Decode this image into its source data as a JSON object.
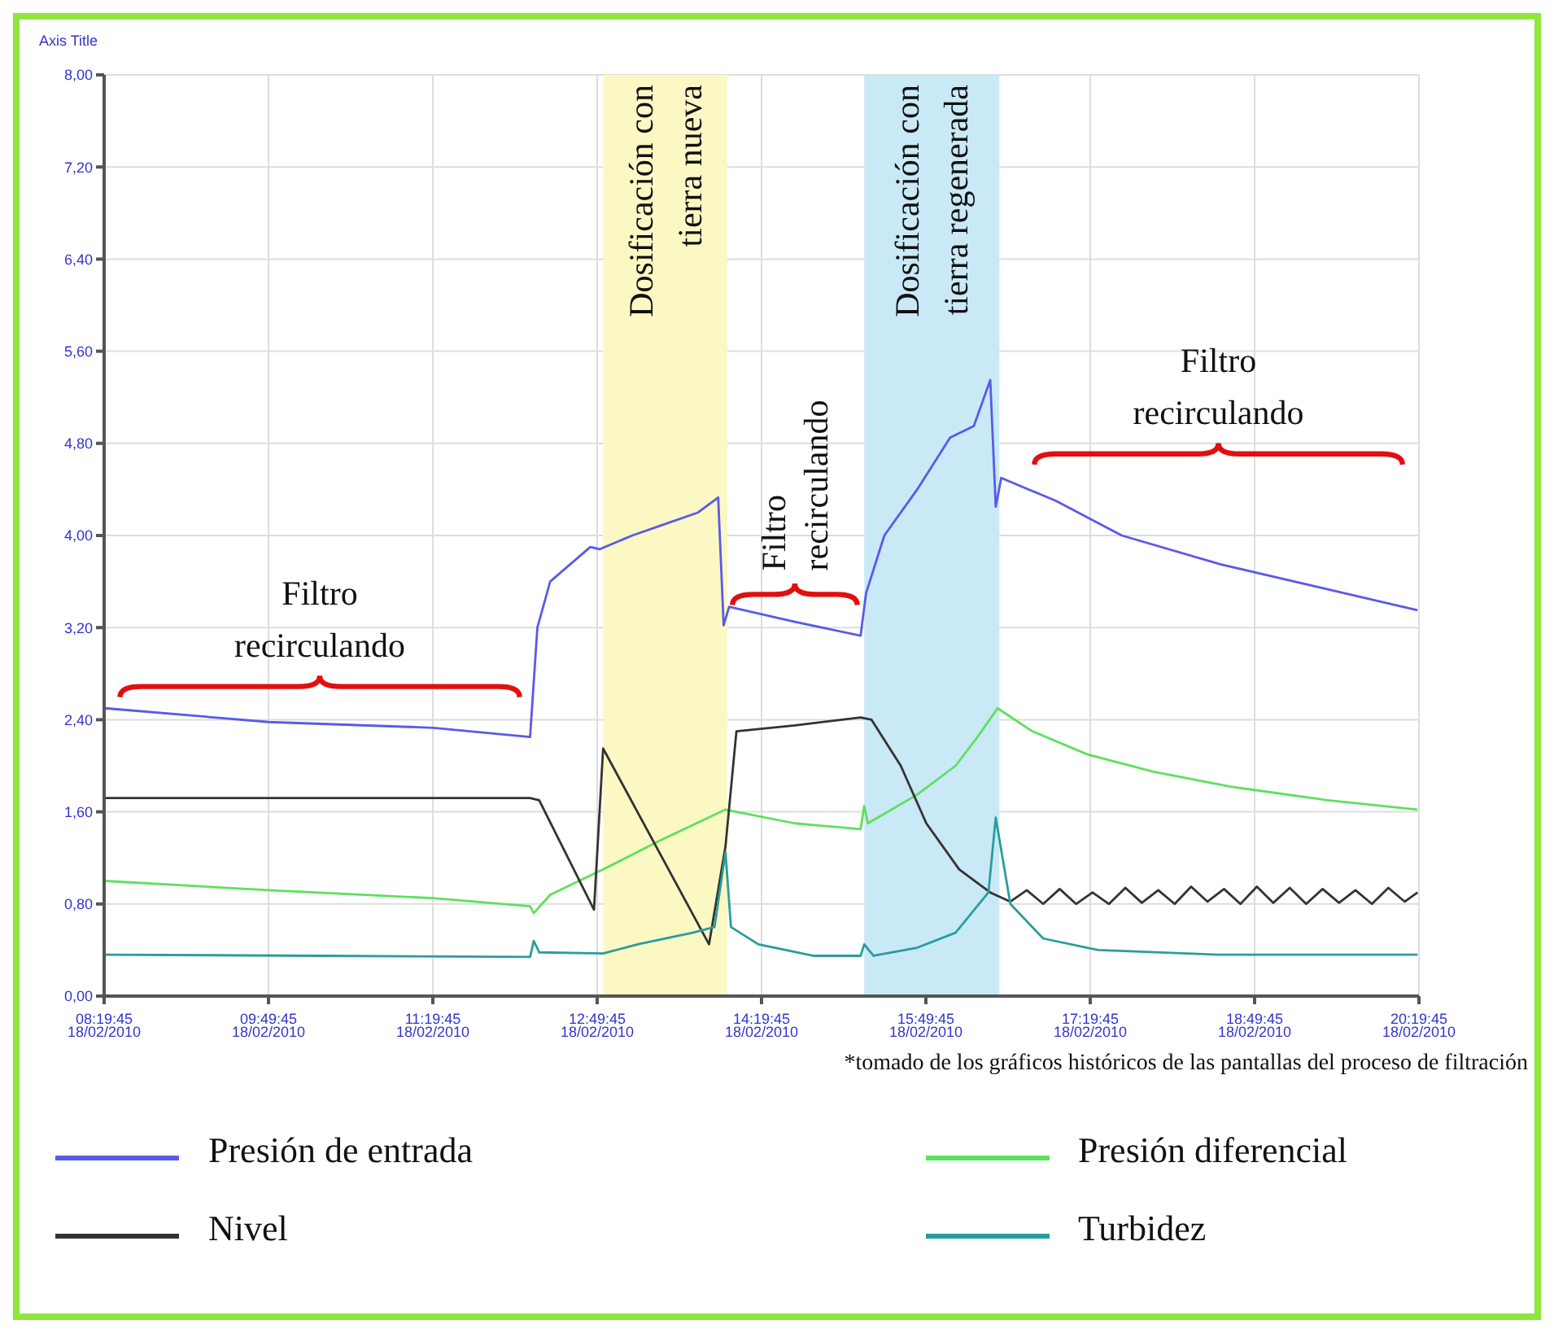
{
  "chart_data": {
    "type": "line",
    "ylabel": "Axis Title",
    "xlim": [
      "2010-02-18T08:19:45",
      "2010-02-18T20:19:45"
    ],
    "xticks": [
      {
        "value": "2010-02-18T08:19:45",
        "label": "08:19:45 18/02/2010"
      },
      {
        "value": "2010-02-18T09:49:45",
        "label": "09:49:45 18/02/2010"
      },
      {
        "value": "2010-02-18T11:19:45",
        "label": "11:19:45 18/02/2010"
      },
      {
        "value": "2010-02-18T12:49:45",
        "label": "12:49:45 18/02/2010"
      },
      {
        "value": "2010-02-18T14:19:45",
        "label": "14:19:45 18/02/2010"
      },
      {
        "value": "2010-02-18T15:49:45",
        "label": "15:49:45 18/02/2010"
      },
      {
        "value": "2010-02-18T17:19:45",
        "label": "17:19:45 18/02/2010"
      },
      {
        "value": "2010-02-18T18:49:45",
        "label": "18:49:45 18/02/2010"
      },
      {
        "value": "2010-02-18T20:19:45",
        "label": "20:19:45 18/02/2010"
      }
    ],
    "ylim": [
      0,
      8
    ],
    "yticks": [
      {
        "value": 0,
        "label": "0,00"
      },
      {
        "value": 0.8,
        "label": "0,80"
      },
      {
        "value": 1.6,
        "label": "1,60"
      },
      {
        "value": 2.4,
        "label": "2,40"
      },
      {
        "value": 3.2,
        "label": "3,20"
      },
      {
        "value": 4,
        "label": "4,00"
      },
      {
        "value": 4.8,
        "label": "4,80"
      },
      {
        "value": 5.6,
        "label": "5,60"
      },
      {
        "value": 6.4,
        "label": "6,40"
      },
      {
        "value": 7.2,
        "label": "7,20"
      },
      {
        "value": 8,
        "label": "8,00"
      }
    ],
    "grid": true,
    "legend": "bottom",
    "marker": "none",
    "line_style": "solid",
    "series": [
      {
        "name": "Presión de entrada",
        "color": "#5a5ae8",
        "x": [
          "2010-02-18T08:20",
          "2010-02-18T09:50",
          "2010-02-18T11:20",
          "2010-02-18T12:13",
          "2010-02-18T12:17",
          "2010-02-18T12:24",
          "2010-02-18T12:46",
          "2010-02-18T12:51",
          "2010-02-18T13:09",
          "2010-02-18T13:27",
          "2010-02-18T13:45",
          "2010-02-18T13:56",
          "2010-02-18T13:59",
          "2010-02-18T14:02",
          "2010-02-18T14:38",
          "2010-02-18T15:14",
          "2010-02-18T15:17",
          "2010-02-18T15:27",
          "2010-02-18T15:45",
          "2010-02-18T16:03",
          "2010-02-18T16:16",
          "2010-02-18T16:25",
          "2010-02-18T16:28",
          "2010-02-18T16:31",
          "2010-02-18T17:01",
          "2010-02-18T17:37",
          "2010-02-18T18:31",
          "2010-02-18T19:25",
          "2010-02-18T20:19"
        ],
        "values": [
          2.5,
          2.38,
          2.33,
          2.25,
          3.2,
          3.6,
          3.9,
          3.88,
          4.0,
          4.1,
          4.2,
          4.33,
          3.22,
          3.38,
          3.25,
          3.13,
          3.5,
          4.0,
          4.4,
          4.85,
          4.95,
          5.35,
          4.25,
          4.5,
          4.3,
          4.0,
          3.75,
          3.55,
          3.35
        ]
      },
      {
        "name": "Presión diferencial",
        "color": "#5ee05e",
        "x": [
          "2010-02-18T08:20",
          "2010-02-18T09:50",
          "2010-02-18T11:20",
          "2010-02-18T12:13",
          "2010-02-18T12:15",
          "2010-02-18T12:24",
          "2010-02-18T12:53",
          "2010-02-18T13:24",
          "2010-02-18T14:00",
          "2010-02-18T14:06",
          "2010-02-18T14:38",
          "2010-02-18T15:14",
          "2010-02-18T15:16",
          "2010-02-18T15:18",
          "2010-02-18T15:45",
          "2010-02-18T16:06",
          "2010-02-18T16:18",
          "2010-02-18T16:29",
          "2010-02-18T16:48",
          "2010-02-18T17:18",
          "2010-02-18T17:54",
          "2010-02-18T18:36",
          "2010-02-18T19:30",
          "2010-02-18T20:19"
        ],
        "values": [
          1.0,
          0.92,
          0.85,
          0.78,
          0.72,
          0.88,
          1.1,
          1.35,
          1.62,
          1.6,
          1.5,
          1.45,
          1.65,
          1.5,
          1.75,
          2.0,
          2.25,
          2.5,
          2.3,
          2.1,
          1.95,
          1.82,
          1.7,
          1.62
        ]
      },
      {
        "name": "Nivel",
        "color": "#333333",
        "x": [
          "2010-02-18T08:20",
          "2010-02-18T09:50",
          "2010-02-18T11:20",
          "2010-02-18T12:13",
          "2010-02-18T12:18",
          "2010-02-18T12:48",
          "2010-02-18T12:53",
          "2010-02-18T13:51",
          "2010-02-18T14:00",
          "2010-02-18T14:06",
          "2010-02-18T14:38",
          "2010-02-18T15:14",
          "2010-02-18T15:20",
          "2010-02-18T15:36",
          "2010-02-18T15:50",
          "2010-02-18T16:08",
          "2010-02-18T16:25",
          "2010-02-18T16:36",
          "2010-02-18T16:45",
          "2010-02-18T16:54",
          "2010-02-18T17:03",
          "2010-02-18T17:12",
          "2010-02-18T17:21",
          "2010-02-18T17:30",
          "2010-02-18T17:39",
          "2010-02-18T17:48",
          "2010-02-18T17:57",
          "2010-02-18T18:06",
          "2010-02-18T18:15",
          "2010-02-18T18:24",
          "2010-02-18T18:33",
          "2010-02-18T18:42",
          "2010-02-18T18:51",
          "2010-02-18T19:00",
          "2010-02-18T19:09",
          "2010-02-18T19:18",
          "2010-02-18T19:27",
          "2010-02-18T19:36",
          "2010-02-18T19:45",
          "2010-02-18T19:54",
          "2010-02-18T20:03",
          "2010-02-18T20:12",
          "2010-02-18T20:19"
        ],
        "values": [
          1.72,
          1.72,
          1.72,
          1.72,
          1.7,
          0.75,
          2.15,
          0.45,
          1.3,
          2.3,
          2.35,
          2.42,
          2.4,
          2.0,
          1.5,
          1.1,
          0.9,
          0.82,
          0.92,
          0.8,
          0.93,
          0.8,
          0.9,
          0.8,
          0.94,
          0.81,
          0.92,
          0.8,
          0.95,
          0.82,
          0.93,
          0.8,
          0.95,
          0.81,
          0.94,
          0.8,
          0.93,
          0.81,
          0.92,
          0.8,
          0.94,
          0.82,
          0.9
        ]
      },
      {
        "name": "Turbidez",
        "color": "#2a9d9d",
        "x": [
          "2010-02-18T08:20",
          "2010-02-18T10:18",
          "2010-02-18T12:13",
          "2010-02-18T12:15",
          "2010-02-18T12:18",
          "2010-02-18T12:53",
          "2010-02-18T13:12",
          "2010-02-18T13:42",
          "2010-02-18T13:54",
          "2010-02-18T14:00",
          "2010-02-18T14:03",
          "2010-02-18T14:18",
          "2010-02-18T14:48",
          "2010-02-18T15:14",
          "2010-02-18T15:16",
          "2010-02-18T15:21",
          "2010-02-18T15:45",
          "2010-02-18T16:06",
          "2010-02-18T16:24",
          "2010-02-18T16:28",
          "2010-02-18T16:36",
          "2010-02-18T16:54",
          "2010-02-18T17:24",
          "2010-02-18T18:30",
          "2010-02-18T20:19"
        ],
        "values": [
          0.36,
          0.35,
          0.34,
          0.48,
          0.38,
          0.37,
          0.45,
          0.55,
          0.6,
          1.25,
          0.6,
          0.45,
          0.35,
          0.35,
          0.45,
          0.35,
          0.42,
          0.55,
          0.9,
          1.55,
          0.8,
          0.5,
          0.4,
          0.36,
          0.36
        ]
      }
    ],
    "bands": [
      {
        "axis": "x",
        "from": "2010-02-18T12:53",
        "to": "2010-02-18T14:01",
        "label": "Dosificación con tierra nueva",
        "color": "#fbf8c4"
      },
      {
        "axis": "x",
        "from": "2010-02-18T15:16",
        "to": "2010-02-18T16:30",
        "label": "Dosificación con tierra regenerada",
        "color": "#c9e9f7"
      }
    ],
    "annotations": [
      "Filtro recirculando",
      {
        "text": "Filtro recirculando",
        "x": "2010-02-18T14:38",
        "y": 3.25
      },
      "Filtro recirculando",
      "*tomado de los gráficos históricos de las pantallas del proceso de filtración"
    ]
  }
}
